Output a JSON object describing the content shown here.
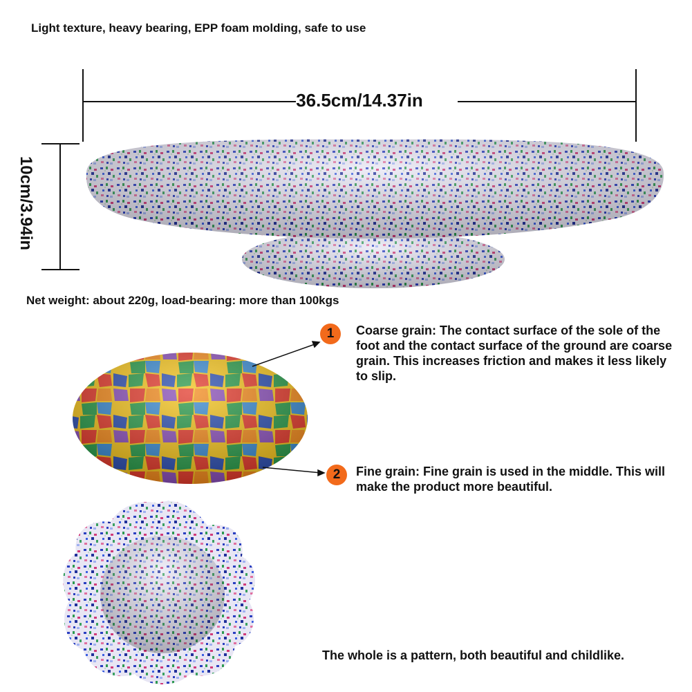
{
  "header": {
    "tagline": "Light texture, heavy bearing, EPP foam molding, safe to use"
  },
  "dimensions": {
    "width": "36.5cm/14.37in",
    "height": "10cm/3.94in"
  },
  "weight_text": "Net weight: about 220g, load-bearing: more than 100kgs",
  "features": [
    {
      "number": "1",
      "text": "Coarse grain: The contact surface of the sole of the foot and the contact surface of the ground are coarse grain. This increases friction and makes it less likely to slip."
    },
    {
      "number": "2",
      "text": "Fine grain: Fine grain is used in the middle. This will make the product more beautiful."
    }
  ],
  "footer_text": "The whole is a pattern, both beautiful and childlike.",
  "colors": {
    "badge": "#f26a1b",
    "text": "#111111"
  }
}
